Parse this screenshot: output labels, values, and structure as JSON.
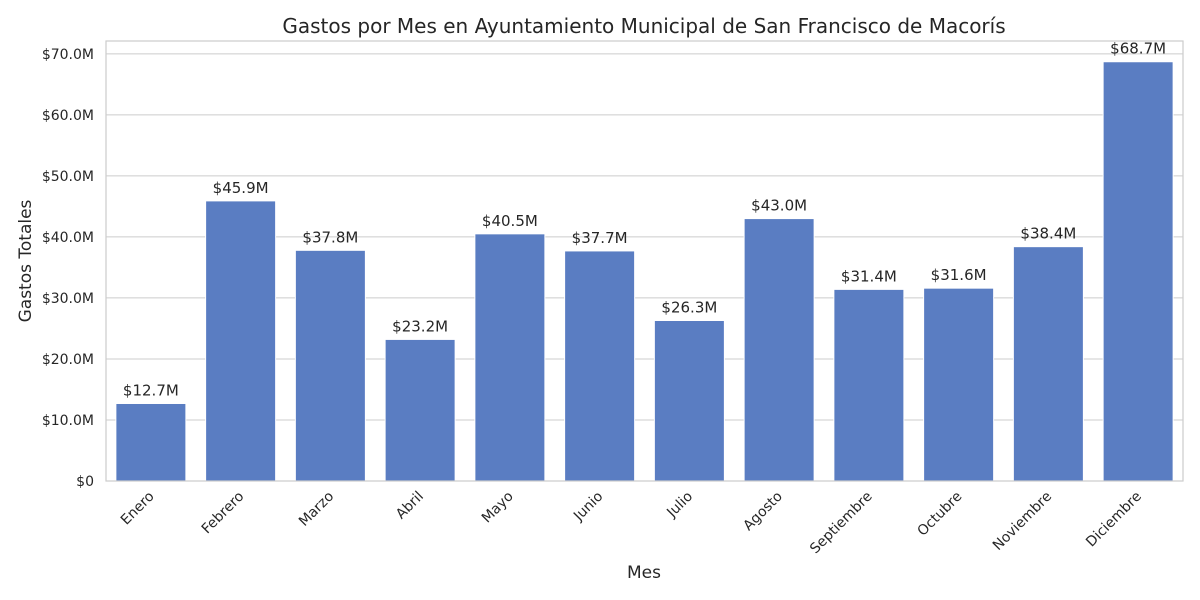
{
  "chart_data": {
    "type": "bar",
    "title": "Gastos por Mes en Ayuntamiento Municipal de San Francisco de Macorís",
    "xlabel": "Mes",
    "ylabel": "Gastos Totales",
    "categories": [
      "Enero",
      "Febrero",
      "Marzo",
      "Abril",
      "Mayo",
      "Junio",
      "Julio",
      "Agosto",
      "Septiembre",
      "Octubre",
      "Noviembre",
      "Diciembre"
    ],
    "values": [
      12.7,
      45.9,
      37.8,
      23.2,
      40.5,
      37.7,
      26.3,
      43.0,
      31.4,
      31.6,
      38.4,
      68.7
    ],
    "value_labels": [
      "$12.7M",
      "$45.9M",
      "$37.8M",
      "$23.2M",
      "$40.5M",
      "$37.7M",
      "$26.3M",
      "$43.0M",
      "$31.4M",
      "$31.6M",
      "$38.4M",
      "$68.7M"
    ],
    "yticks": [
      0,
      10,
      20,
      30,
      40,
      50,
      60,
      70
    ],
    "ytick_labels": [
      "$0",
      "$10.0M",
      "$20.0M",
      "$30.0M",
      "$40.0M",
      "$50.0M",
      "$60.0M",
      "$70.0M"
    ],
    "ylim": [
      0,
      72.1
    ],
    "bar_color": "#5a7dc2",
    "grid": true,
    "legend": "none"
  }
}
